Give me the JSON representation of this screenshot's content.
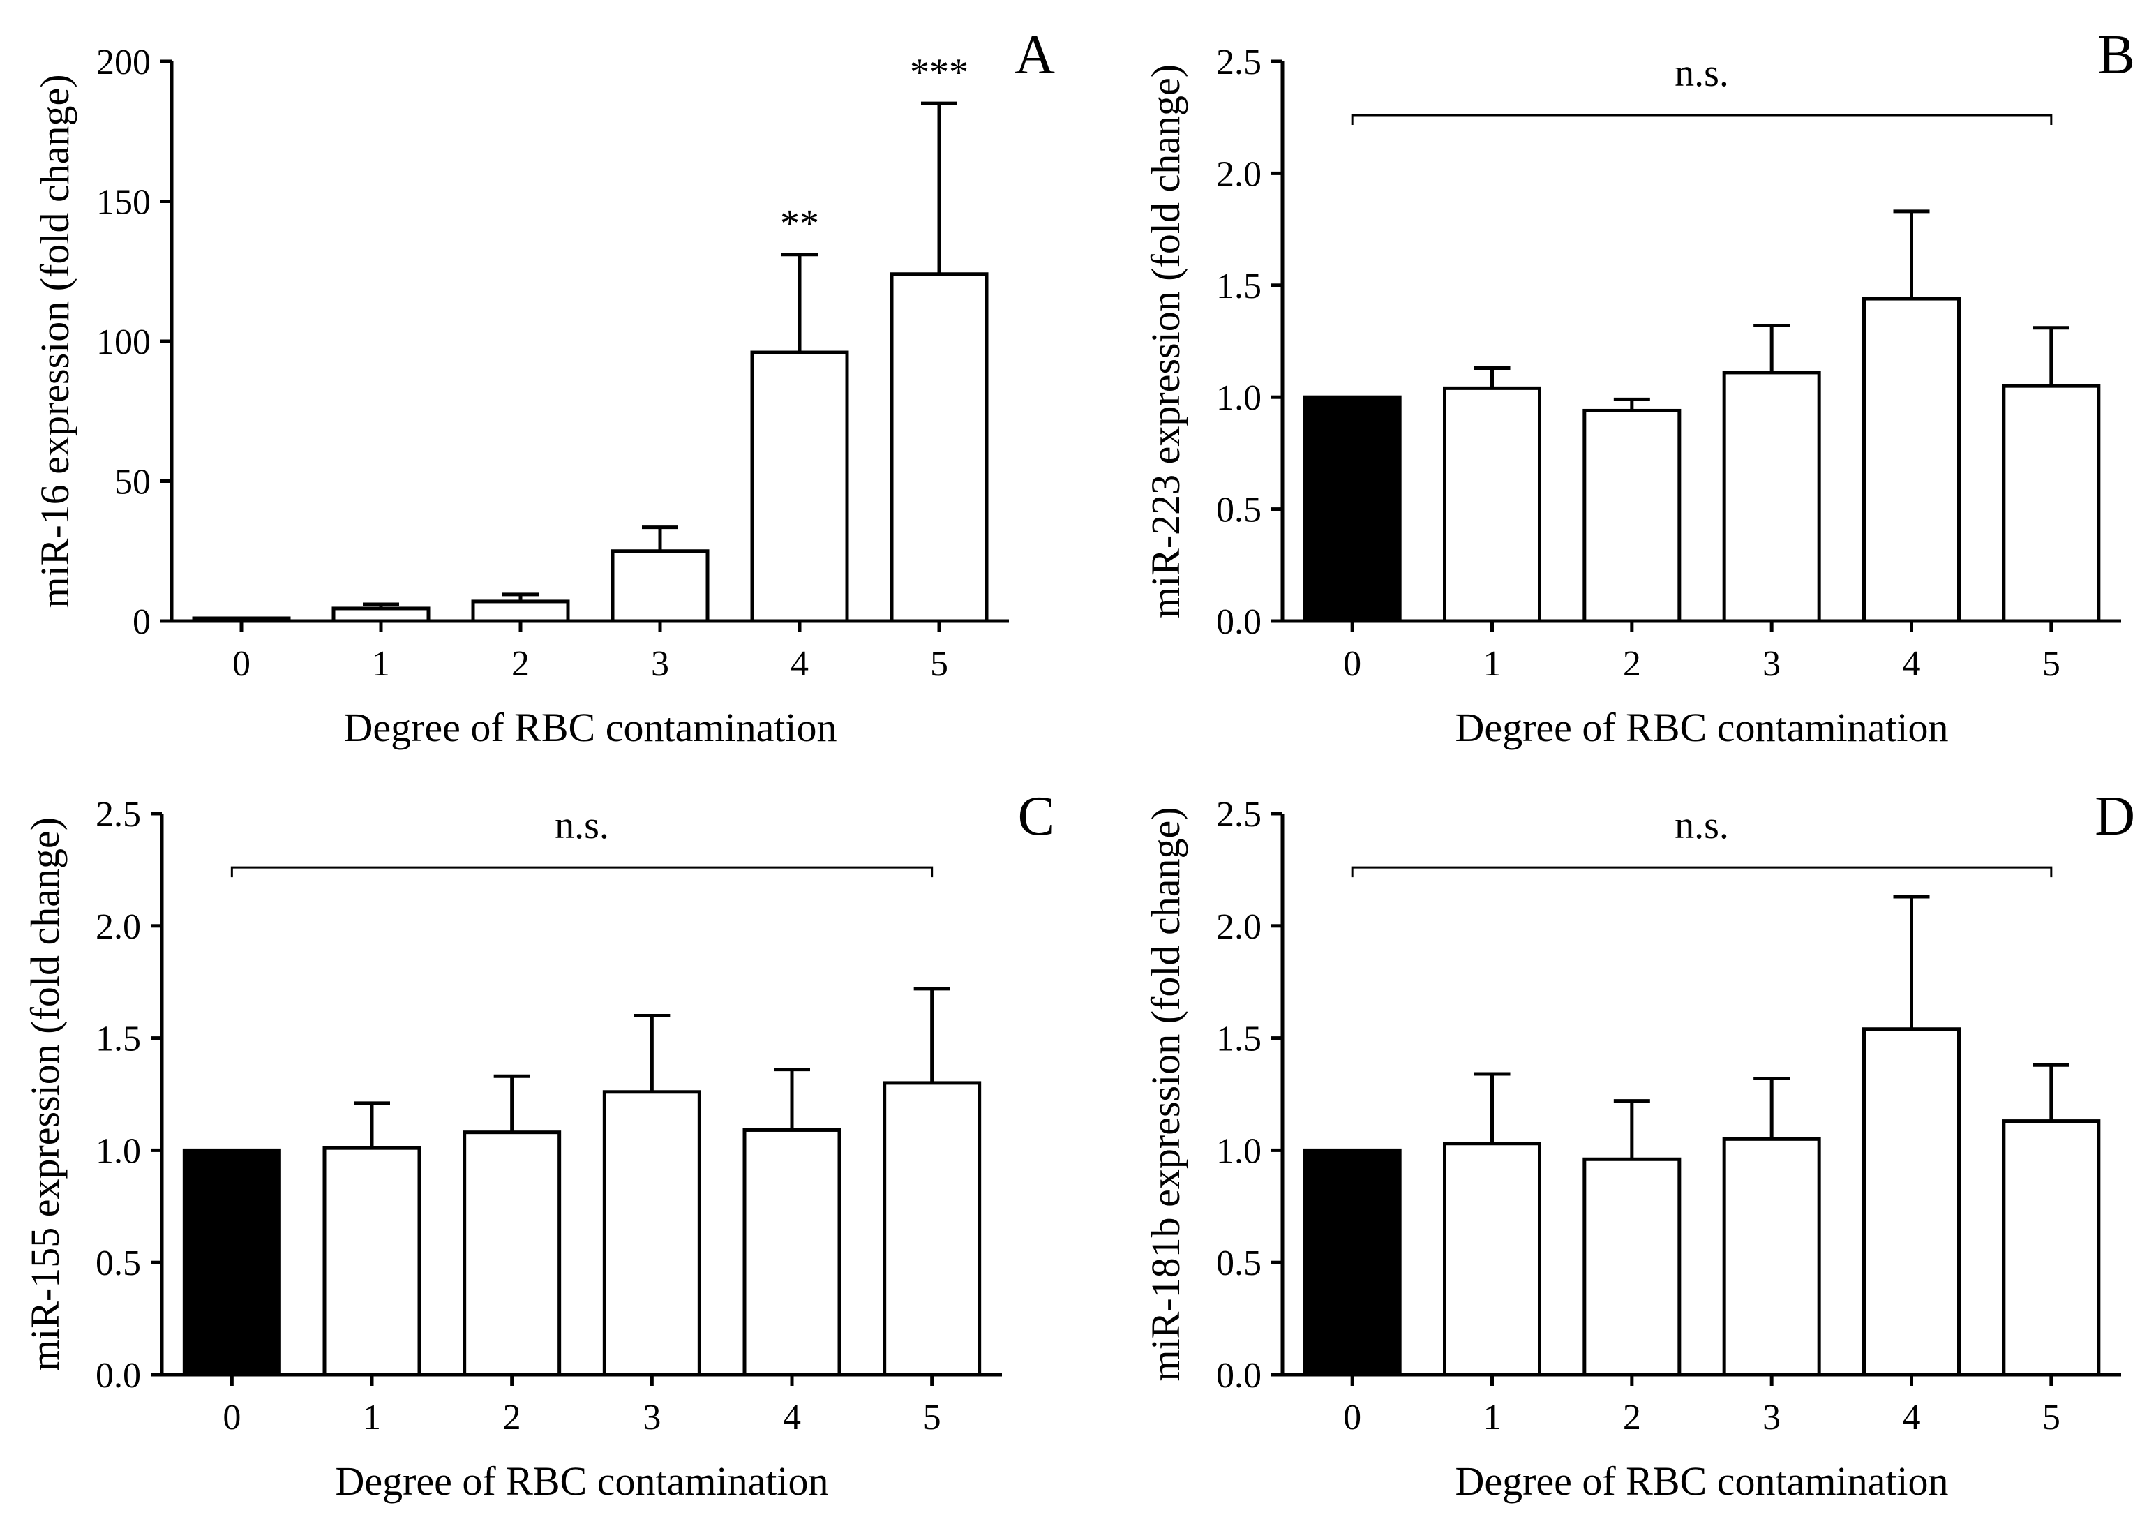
{
  "figure_colors": {
    "background": "#ffffff",
    "ink": "#000000",
    "control_fill": "#000000",
    "bar_fill": "#ffffff"
  },
  "chart_data": [
    {
      "panel": "A",
      "type": "bar",
      "xlabel": "Degree of RBC contamination",
      "ylabel": "miR-16 expression (fold change)",
      "categories": [
        "0",
        "1",
        "2",
        "3",
        "4",
        "5"
      ],
      "values": [
        1,
        4.5,
        7,
        25,
        96,
        124
      ],
      "errors": [
        0,
        1.5,
        2.5,
        8.5,
        35,
        61
      ],
      "highlight_index": 0,
      "ylim": [
        0,
        200
      ],
      "yticks": [
        "0",
        "50",
        "100",
        "150",
        "200"
      ],
      "significance": [
        {
          "index": 4,
          "label": "**"
        },
        {
          "index": 5,
          "label": "***"
        }
      ],
      "bracket": null
    },
    {
      "panel": "B",
      "type": "bar",
      "xlabel": "Degree of RBC contamination",
      "ylabel": "miR-223 expression (fold change)",
      "categories": [
        "0",
        "1",
        "2",
        "3",
        "4",
        "5"
      ],
      "values": [
        1.0,
        1.04,
        0.94,
        1.11,
        1.44,
        1.05
      ],
      "errors": [
        0,
        0.09,
        0.05,
        0.21,
        0.39,
        0.26
      ],
      "highlight_index": 0,
      "ylim": [
        0,
        2.5
      ],
      "yticks": [
        "0.0",
        "0.5",
        "1.0",
        "1.5",
        "2.0",
        "2.5"
      ],
      "significance": [],
      "bracket": {
        "label": "n.s.",
        "y": 2.26,
        "from_index": 0,
        "to_index": 5
      }
    },
    {
      "panel": "C",
      "type": "bar",
      "xlabel": "Degree of RBC contamination",
      "ylabel": "miR-155 expression (fold change)",
      "categories": [
        "0",
        "1",
        "2",
        "3",
        "4",
        "5"
      ],
      "values": [
        1.0,
        1.01,
        1.08,
        1.26,
        1.09,
        1.3
      ],
      "errors": [
        0,
        0.2,
        0.25,
        0.34,
        0.27,
        0.42
      ],
      "highlight_index": 0,
      "ylim": [
        0,
        2.5
      ],
      "yticks": [
        "0.0",
        "0.5",
        "1.0",
        "1.5",
        "2.0",
        "2.5"
      ],
      "significance": [],
      "bracket": {
        "label": "n.s.",
        "y": 2.26,
        "from_index": 0,
        "to_index": 5
      }
    },
    {
      "panel": "D",
      "type": "bar",
      "xlabel": "Degree of RBC contamination",
      "ylabel": "miR-181b expression (fold change)",
      "categories": [
        "0",
        "1",
        "2",
        "3",
        "4",
        "5"
      ],
      "values": [
        1.0,
        1.03,
        0.96,
        1.05,
        1.54,
        1.13
      ],
      "errors": [
        0,
        0.31,
        0.26,
        0.27,
        0.59,
        0.25
      ],
      "highlight_index": 0,
      "ylim": [
        0,
        2.5
      ],
      "yticks": [
        "0.0",
        "0.5",
        "1.0",
        "1.5",
        "2.0",
        "2.5"
      ],
      "significance": [],
      "bracket": {
        "label": "n.s.",
        "y": 2.26,
        "from_index": 0,
        "to_index": 5
      }
    }
  ]
}
